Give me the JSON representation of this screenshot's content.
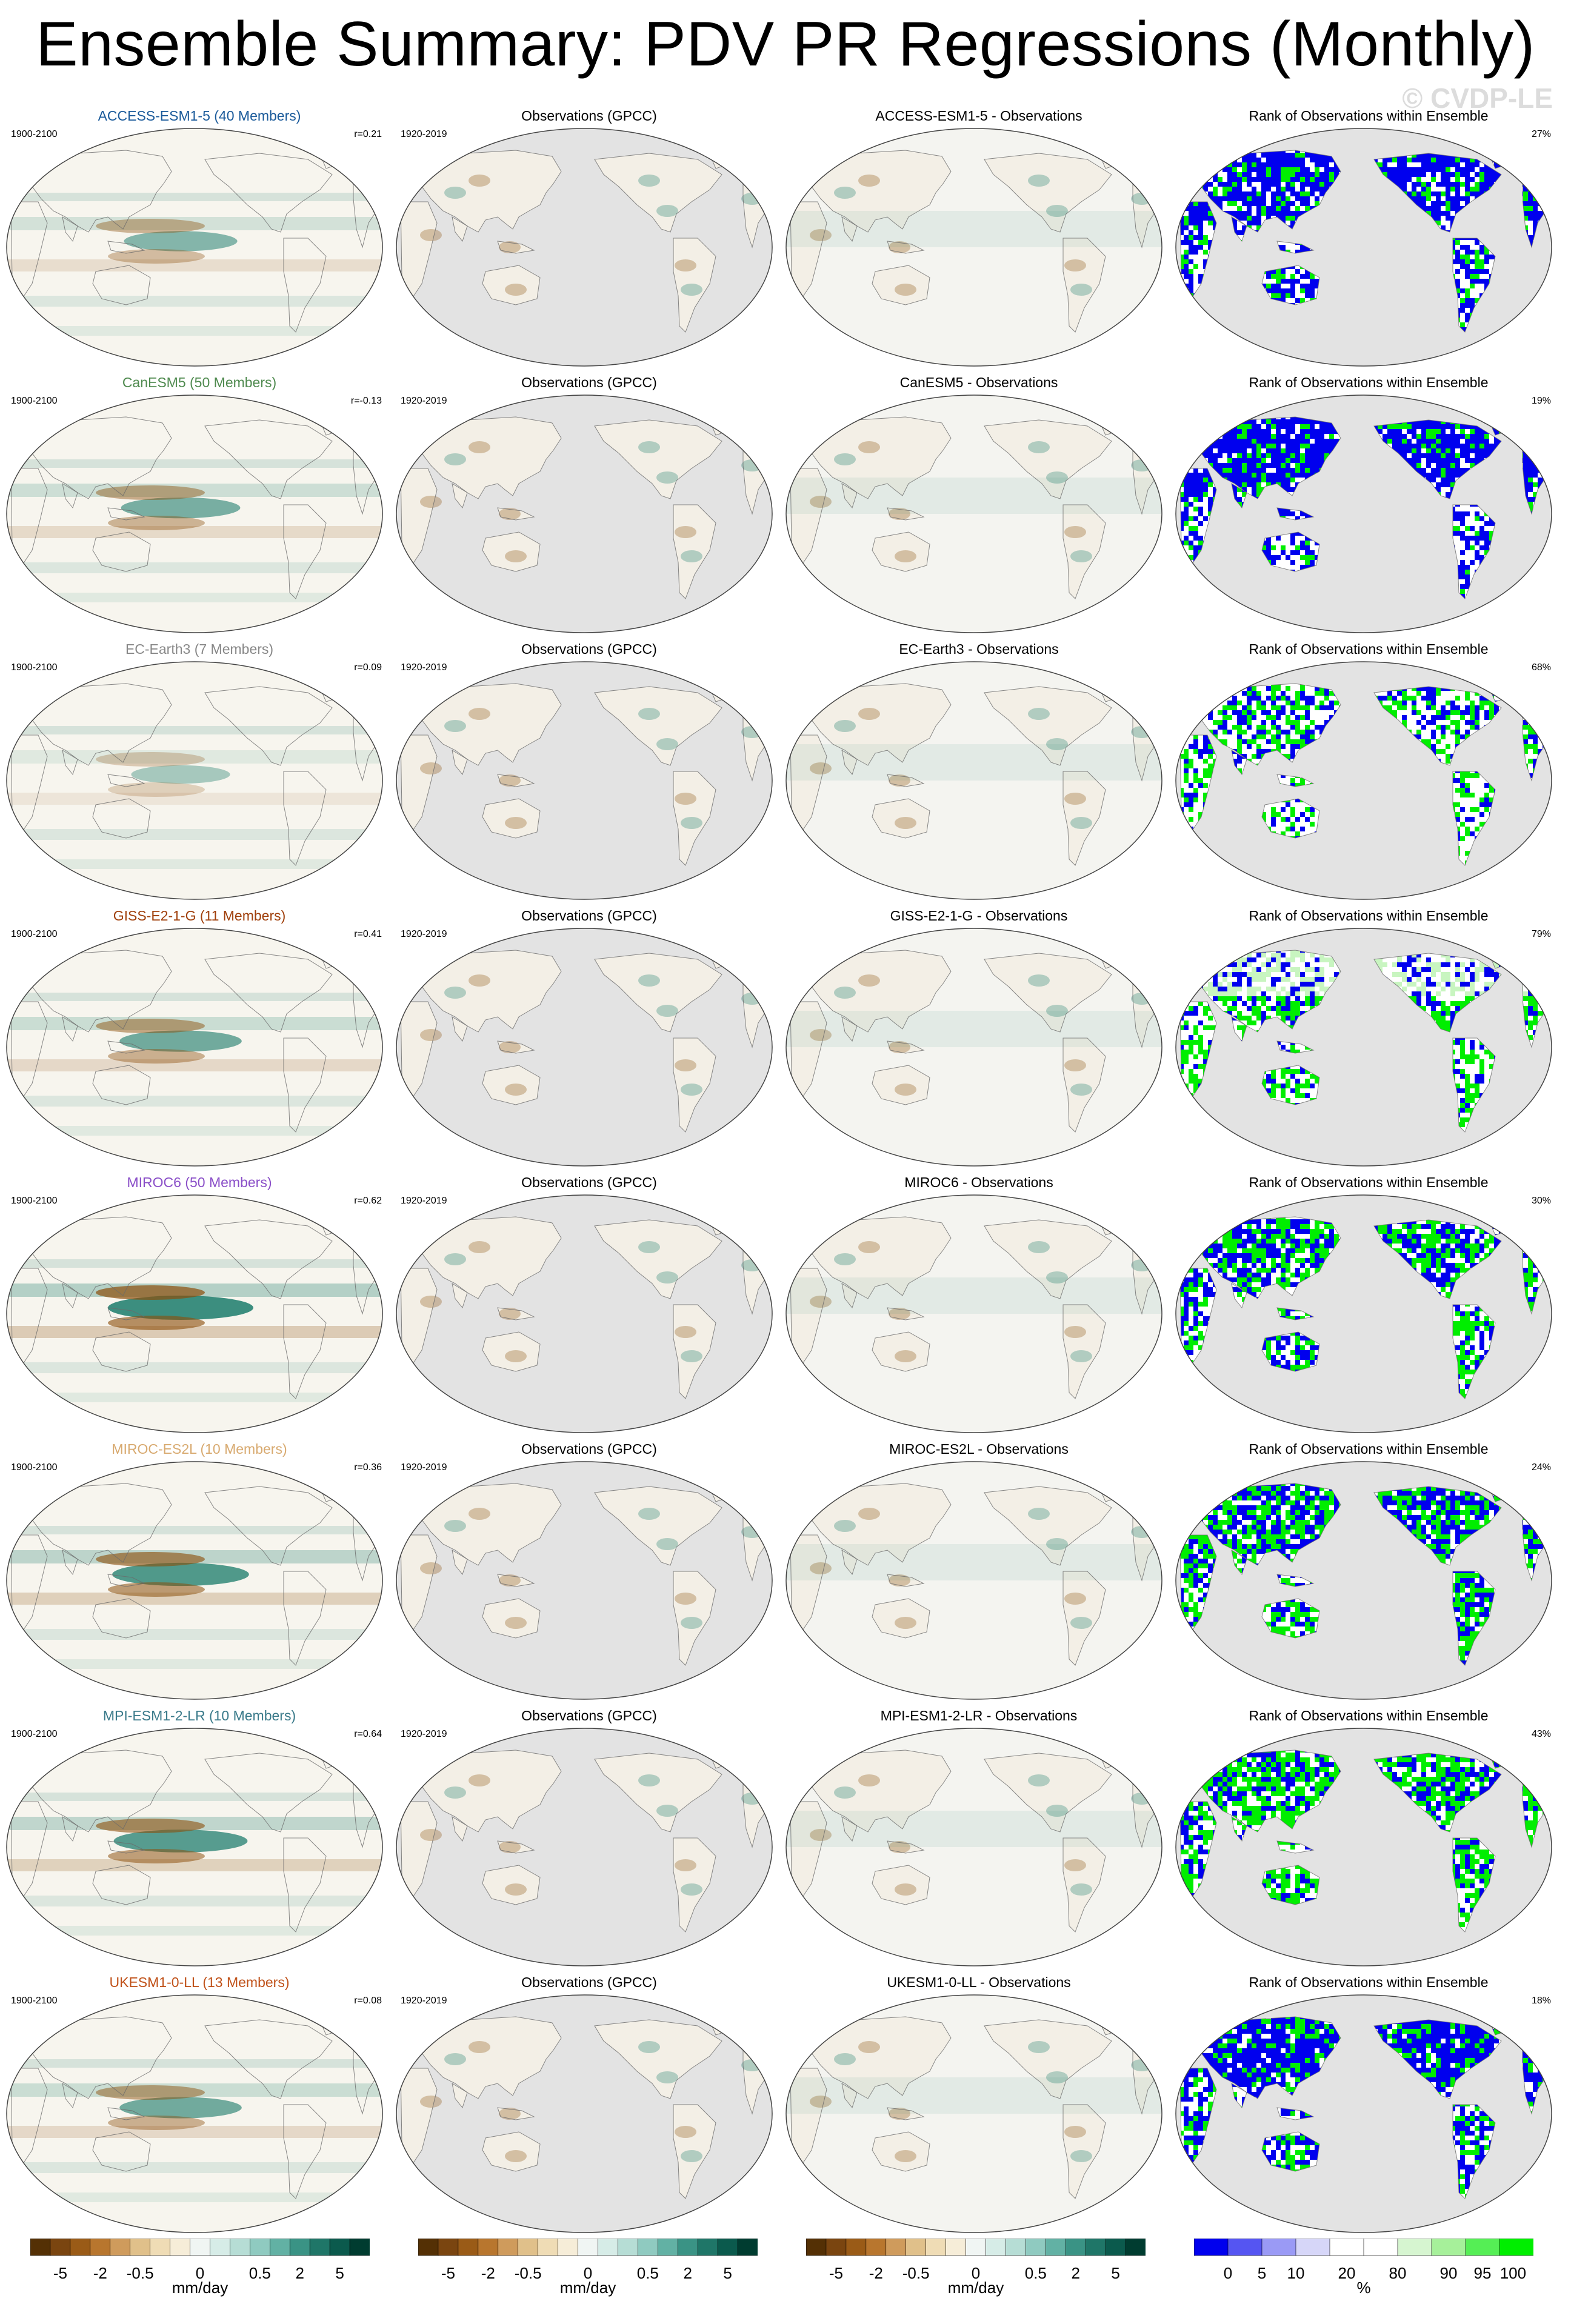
{
  "title": "Ensemble Summary: PDV PR Regressions (Monthly)",
  "copyright": "© CVDP-LE",
  "colors": {
    "land": "#e3e3e3",
    "brown": "#8c4f0b",
    "teal": "#1b7b6b",
    "rank_low": "#0000ee",
    "rank_high": "#00ee00",
    "rank_light_green": "#c8f5c0"
  },
  "rows": [
    {
      "model": "ACCESS-ESM1-5 (40 Members)",
      "model_short": "ACCESS-ESM1-5",
      "model_color": "#1a5a9a",
      "years_model": "1900-2100",
      "r": "r=0.21",
      "years_obs": "1920-2019",
      "obs_title": "Observations (GPCC)",
      "diff_title": "ACCESS-ESM1-5 - Observations",
      "rank_title": "Rank of Observations within Ensemble",
      "rank_pct": "27%"
    },
    {
      "model": "CanESM5 (50 Members)",
      "model_short": "CanESM5",
      "model_color": "#4f8a4f",
      "years_model": "1900-2100",
      "r": "r=-0.13",
      "years_obs": "1920-2019",
      "obs_title": "Observations (GPCC)",
      "diff_title": "CanESM5 - Observations",
      "rank_title": "Rank of Observations within Ensemble",
      "rank_pct": "19%"
    },
    {
      "model": "EC-Earth3 (7 Members)",
      "model_short": "EC-Earth3",
      "model_color": "#888888",
      "years_model": "1900-2100",
      "r": "r=0.09",
      "years_obs": "1920-2019",
      "obs_title": "Observations (GPCC)",
      "diff_title": "EC-Earth3 - Observations",
      "rank_title": "Rank of Observations within Ensemble",
      "rank_pct": "68%"
    },
    {
      "model": "GISS-E2-1-G (11 Members)",
      "model_short": "GISS-E2-1-G",
      "model_color": "#a0400c",
      "years_model": "1900-2100",
      "r": "r=0.41",
      "years_obs": "1920-2019",
      "obs_title": "Observations (GPCC)",
      "diff_title": "GISS-E2-1-G - Observations",
      "rank_title": "Rank of Observations within Ensemble",
      "rank_pct": "79%"
    },
    {
      "model": "MIROC6 (50 Members)",
      "model_short": "MIROC6",
      "model_color": "#8a4fc8",
      "years_model": "1900-2100",
      "r": "r=0.62",
      "years_obs": "1920-2019",
      "obs_title": "Observations (GPCC)",
      "diff_title": "MIROC6 - Observations",
      "rank_title": "Rank of Observations within Ensemble",
      "rank_pct": "30%"
    },
    {
      "model": "MIROC-ES2L (10 Members)",
      "model_short": "MIROC-ES2L",
      "model_color": "#d8aa70",
      "years_model": "1900-2100",
      "r": "r=0.36",
      "years_obs": "1920-2019",
      "obs_title": "Observations (GPCC)",
      "diff_title": "MIROC-ES2L - Observations",
      "rank_title": "Rank of Observations within Ensemble",
      "rank_pct": "24%"
    },
    {
      "model": "MPI-ESM1-2-LR (10 Members)",
      "model_short": "MPI-ESM1-2-LR",
      "model_color": "#3a7a8a",
      "years_model": "1900-2100",
      "r": "r=0.64",
      "years_obs": "1920-2019",
      "obs_title": "Observations (GPCC)",
      "diff_title": "MPI-ESM1-2-LR - Observations",
      "rank_title": "Rank of Observations within Ensemble",
      "rank_pct": "43%"
    },
    {
      "model": "UKESM1-0-LL (13 Members)",
      "model_short": "UKESM1-0-LL",
      "model_color": "#c0521a",
      "years_model": "1900-2100",
      "r": "r=0.08",
      "years_obs": "1920-2019",
      "obs_title": "Observations (GPCC)",
      "diff_title": "UKESM1-0-LL - Observations",
      "rank_title": "Rank of Observations within Ensemble",
      "rank_pct": "18%"
    }
  ],
  "colorbars": {
    "regression": {
      "ticks": [
        "-5",
        "-2",
        "-0.5",
        "0",
        "0.5",
        "2",
        "5"
      ],
      "label": "mm/day",
      "colors": [
        "#543005",
        "#7a4510",
        "#9a5b17",
        "#b8762e",
        "#cf9b5c",
        "#e0c08a",
        "#efdcb5",
        "#f6edd8",
        "#f0f5f3",
        "#d6ece7",
        "#b6ddd5",
        "#8fcac0",
        "#62b1a4",
        "#3a9385",
        "#1f7668",
        "#0b5a4d",
        "#003c30"
      ]
    },
    "rank": {
      "ticks": [
        "0",
        "5",
        "10",
        "20",
        "80",
        "90",
        "95",
        "100"
      ],
      "label": "%",
      "colors": [
        "#0000ee",
        "#5555f2",
        "#9a9af5",
        "#d6d6f8",
        "#ffffff",
        "#ffffff",
        "#d6f5d0",
        "#a6f09a",
        "#55ee55",
        "#00ee00"
      ]
    }
  }
}
